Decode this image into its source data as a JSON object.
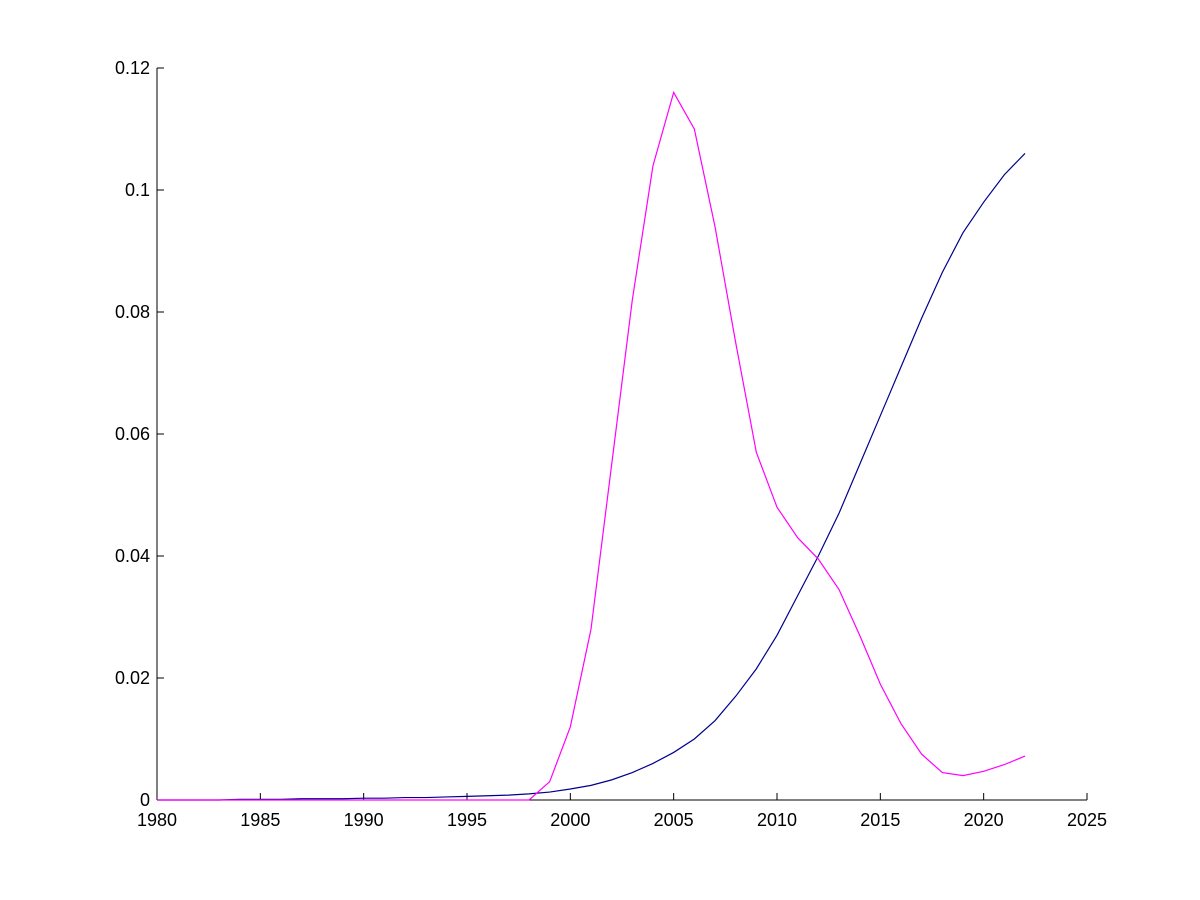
{
  "chart_data": {
    "type": "line",
    "x": [
      1980,
      1981,
      1982,
      1983,
      1984,
      1985,
      1986,
      1987,
      1988,
      1989,
      1990,
      1991,
      1992,
      1993,
      1994,
      1995,
      1996,
      1997,
      1998,
      1999,
      2000,
      2001,
      2002,
      2003,
      2004,
      2005,
      2006,
      2007,
      2008,
      2009,
      2010,
      2011,
      2012,
      2013,
      2014,
      2015,
      2016,
      2017,
      2018,
      2019,
      2020,
      2021,
      2022
    ],
    "series": [
      {
        "color": "#00008b",
        "values": [
          0,
          0,
          0,
          0,
          0.0001,
          0.0001,
          0.0001,
          0.0002,
          0.0002,
          0.0002,
          0.0003,
          0.0003,
          0.0004,
          0.0004,
          0.0005,
          0.0006,
          0.0007,
          0.0008,
          0.001,
          0.0013,
          0.0018,
          0.0024,
          0.0033,
          0.0045,
          0.006,
          0.0078,
          0.01,
          0.013,
          0.017,
          0.0215,
          0.027,
          0.0335,
          0.04,
          0.047,
          0.055,
          0.063,
          0.071,
          0.079,
          0.0865,
          0.093,
          0.098,
          0.1025,
          0.106
        ]
      },
      {
        "color": "#ff00ff",
        "values": [
          0,
          0,
          0,
          0,
          0,
          0,
          0,
          0,
          0,
          0,
          0,
          0,
          0,
          0,
          0,
          0,
          0,
          0,
          0,
          0.003,
          0.012,
          0.028,
          0.055,
          0.082,
          0.104,
          0.116,
          0.11,
          0.094,
          0.075,
          0.057,
          0.048,
          0.043,
          0.0395,
          0.0345,
          0.027,
          0.019,
          0.0125,
          0.0075,
          0.0045,
          0.004,
          0.0047,
          0.0058,
          0.0072
        ]
      }
    ],
    "xlim": [
      1980,
      2025
    ],
    "xticks": [
      1980,
      1985,
      1990,
      1995,
      2000,
      2005,
      2010,
      2015,
      2020,
      2025
    ],
    "ylim": [
      0,
      0.12
    ],
    "yticks": [
      0,
      0.02,
      0.04,
      0.06,
      0.08,
      0.1,
      0.12
    ]
  }
}
